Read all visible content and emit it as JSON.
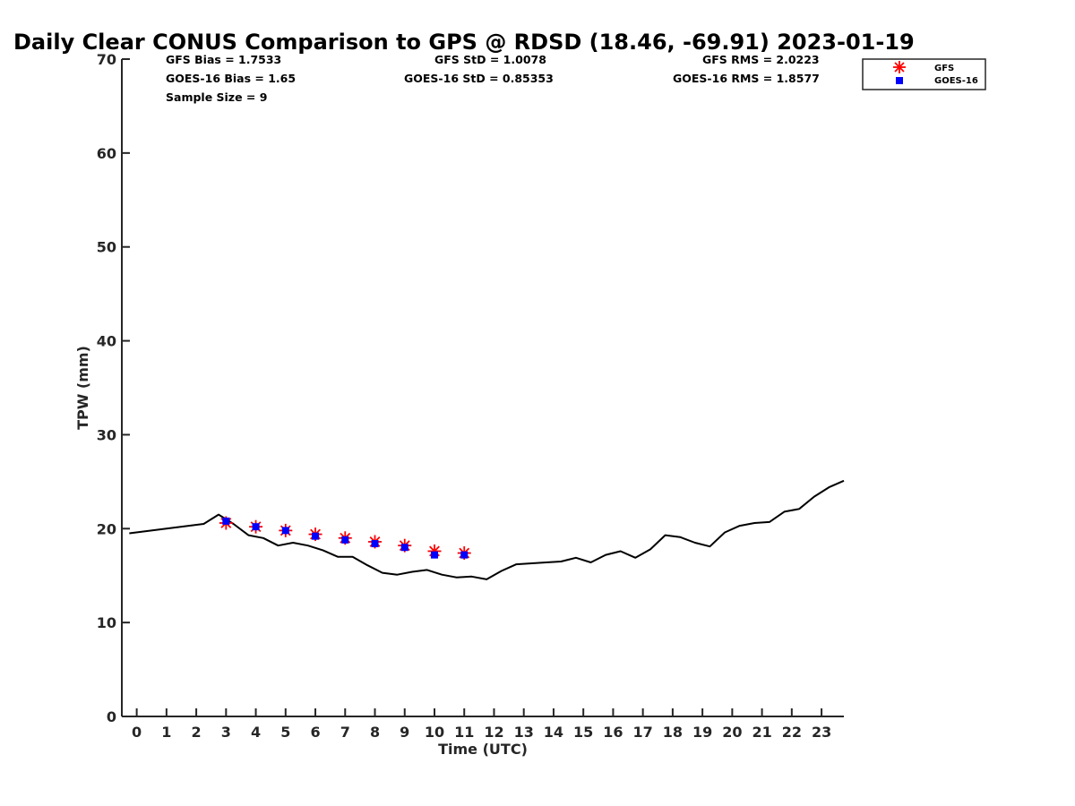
{
  "chart_data": {
    "type": "scatter",
    "title": "Daily Clear CONUS Comparison to GPS @ RDSD (18.46, -69.91) 2023-01-19",
    "xlabel": "Time (UTC)",
    "ylabel": "TPW (mm)",
    "xlim": [
      -0.5,
      23.75
    ],
    "ylim": [
      0,
      70
    ],
    "x_ticks": [
      0,
      1,
      2,
      3,
      4,
      5,
      6,
      7,
      8,
      9,
      10,
      11,
      12,
      13,
      14,
      15,
      16,
      17,
      18,
      19,
      20,
      21,
      22,
      23
    ],
    "y_ticks": [
      0,
      10,
      20,
      30,
      40,
      50,
      60,
      70
    ],
    "grid": false,
    "legend_position": "top-right",
    "stats": {
      "gfs_bias": "GFS Bias = 1.7533",
      "goes_bias": "GOES-16 Bias = 1.65",
      "sample_size": "Sample Size = 9",
      "gfs_std": "GFS StD = 1.0078",
      "goes_std": "GOES-16 StD = 0.85353",
      "gfs_rms": "GFS RMS = 2.0223",
      "goes_rms": "GOES-16 RMS = 1.8577"
    },
    "series": [
      {
        "name": "GFS",
        "marker": "asterisk",
        "color": "#ff0000",
        "points": [
          [
            3,
            20.6
          ],
          [
            4,
            20.2
          ],
          [
            5,
            19.8
          ],
          [
            6,
            19.4
          ],
          [
            7,
            19.0
          ],
          [
            8,
            18.6
          ],
          [
            9,
            18.2
          ],
          [
            10,
            17.6
          ],
          [
            11,
            17.4
          ]
        ]
      },
      {
        "name": "GOES-16",
        "marker": "square",
        "color": "#0000ff",
        "points": [
          [
            3,
            20.8
          ],
          [
            4,
            20.2
          ],
          [
            5,
            19.8
          ],
          [
            6,
            19.2
          ],
          [
            7,
            18.8
          ],
          [
            8,
            18.4
          ],
          [
            9,
            18.0
          ],
          [
            10,
            17.2
          ],
          [
            11,
            17.2
          ]
        ]
      },
      {
        "marker": "line",
        "color": "#000000",
        "points": [
          [
            -0.25,
            19.5
          ],
          [
            2.25,
            20.5
          ],
          [
            2.75,
            21.5
          ],
          [
            3.25,
            20.5
          ],
          [
            3.75,
            19.3
          ],
          [
            4.25,
            19.0
          ],
          [
            4.75,
            18.2
          ],
          [
            5.25,
            18.5
          ],
          [
            5.75,
            18.2
          ],
          [
            6.25,
            17.7
          ],
          [
            6.75,
            17.0
          ],
          [
            7.25,
            17.0
          ],
          [
            7.75,
            16.1
          ],
          [
            8.25,
            15.3
          ],
          [
            8.75,
            15.1
          ],
          [
            9.25,
            15.4
          ],
          [
            9.75,
            15.6
          ],
          [
            10.25,
            15.1
          ],
          [
            10.75,
            14.8
          ],
          [
            11.25,
            14.9
          ],
          [
            11.75,
            14.6
          ],
          [
            12.25,
            15.5
          ],
          [
            12.75,
            16.2
          ],
          [
            13.75,
            16.4
          ],
          [
            14.25,
            16.5
          ],
          [
            14.75,
            16.9
          ],
          [
            15.25,
            16.4
          ],
          [
            15.75,
            17.2
          ],
          [
            16.25,
            17.6
          ],
          [
            16.75,
            16.9
          ],
          [
            17.25,
            17.8
          ],
          [
            17.75,
            19.3
          ],
          [
            18.25,
            19.1
          ],
          [
            18.75,
            18.5
          ],
          [
            19.25,
            18.1
          ],
          [
            19.75,
            19.6
          ],
          [
            20.25,
            20.3
          ],
          [
            20.75,
            20.6
          ],
          [
            21.25,
            20.7
          ],
          [
            21.75,
            21.8
          ],
          [
            22.25,
            22.1
          ],
          [
            22.75,
            23.4
          ],
          [
            23.25,
            24.4
          ],
          [
            23.75,
            25.1
          ]
        ]
      }
    ]
  }
}
